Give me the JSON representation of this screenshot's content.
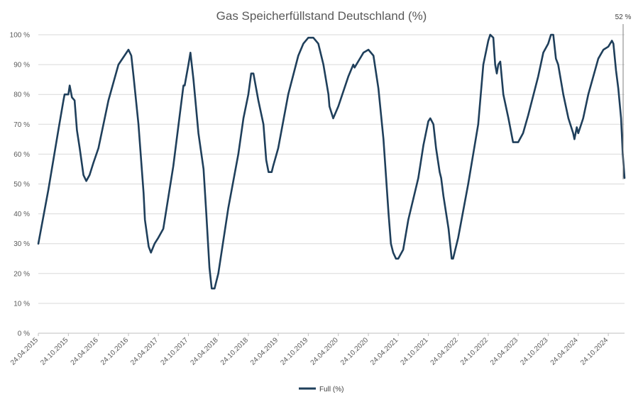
{
  "chart_data": {
    "type": "line",
    "title": "Gas Speicherfüllstand Deutschland (%)",
    "xlabel": "",
    "ylabel": "",
    "ylim": [
      0,
      100
    ],
    "y_ticks": [
      "0 %",
      "10 %",
      "20 %",
      "30 %",
      "40 %",
      "50 %",
      "60 %",
      "70 %",
      "80 %",
      "90 %",
      "100 %"
    ],
    "x_ticks": [
      "24.04.2015",
      "24.10.2015",
      "24.04.2016",
      "24.10.2016",
      "24.04.2017",
      "24.10.2017",
      "24.04.2018",
      "24.10.2018",
      "24.04.2019",
      "24.10.2019",
      "24.04.2020",
      "24.10.2020",
      "24.04.2021",
      "24.10.2021",
      "24.04.2022",
      "24.10.2022",
      "24.04.2023",
      "24.10.2023",
      "24.04.2024",
      "24.10.2024"
    ],
    "grid": true,
    "legend_position": "bottom",
    "annotation": "52 %",
    "series": [
      {
        "name": "Full (%)",
        "color": "#1f3f5b",
        "points": [
          [
            "24.04.2015",
            30
          ],
          [
            "24.06.2015",
            48
          ],
          [
            "24.08.2015",
            68
          ],
          [
            "24.09.2015",
            78
          ],
          [
            "01.10.2015",
            80
          ],
          [
            "24.10.2015",
            80
          ],
          [
            "01.11.2015",
            83
          ],
          [
            "15.11.2015",
            79
          ],
          [
            "01.12.2015",
            78
          ],
          [
            "15.12.2015",
            68
          ],
          [
            "01.01.2016",
            62
          ],
          [
            "24.01.2016",
            53
          ],
          [
            "10.02.2016",
            51
          ],
          [
            "01.03.2016",
            53
          ],
          [
            "24.03.2016",
            57
          ],
          [
            "24.04.2016",
            62
          ],
          [
            "24.06.2016",
            78
          ],
          [
            "24.08.2016",
            90
          ],
          [
            "24.10.2016",
            95
          ],
          [
            "10.11.2016",
            93
          ],
          [
            "24.11.2016",
            86
          ],
          [
            "24.12.2016",
            70
          ],
          [
            "24.01.2017",
            47
          ],
          [
            "01.02.2017",
            38
          ],
          [
            "24.02.2017",
            29
          ],
          [
            "10.03.2017",
            27
          ],
          [
            "01.04.2017",
            30
          ],
          [
            "24.04.2017",
            32
          ],
          [
            "24.05.2017",
            35
          ],
          [
            "24.07.2017",
            56
          ],
          [
            "24.09.2017",
            83
          ],
          [
            "01.10.2017",
            83
          ],
          [
            "24.10.2017",
            90
          ],
          [
            "05.11.2017",
            94
          ],
          [
            "24.11.2017",
            85
          ],
          [
            "24.12.2017",
            67
          ],
          [
            "24.01.2018",
            55
          ],
          [
            "10.02.2018",
            40
          ],
          [
            "01.03.2018",
            22
          ],
          [
            "15.03.2018",
            15
          ],
          [
            "01.04.2018",
            15
          ],
          [
            "24.04.2018",
            20
          ],
          [
            "24.06.2018",
            42
          ],
          [
            "24.08.2018",
            60
          ],
          [
            "24.09.2018",
            72
          ],
          [
            "24.10.2018",
            80
          ],
          [
            "10.11.2018",
            87
          ],
          [
            "24.11.2018",
            87
          ],
          [
            "24.12.2018",
            78
          ],
          [
            "24.01.2019",
            70
          ],
          [
            "10.02.2019",
            58
          ],
          [
            "24.02.2019",
            54
          ],
          [
            "15.03.2019",
            54
          ],
          [
            "24.03.2019",
            56
          ],
          [
            "24.04.2019",
            62
          ],
          [
            "24.06.2019",
            80
          ],
          [
            "24.08.2019",
            93
          ],
          [
            "24.09.2019",
            97
          ],
          [
            "24.10.2019",
            99
          ],
          [
            "24.11.2019",
            99
          ],
          [
            "24.12.2019",
            97
          ],
          [
            "24.01.2020",
            90
          ],
          [
            "24.02.2020",
            80
          ],
          [
            "01.03.2020",
            76
          ],
          [
            "24.03.2020",
            72
          ],
          [
            "24.04.2020",
            76
          ],
          [
            "24.06.2020",
            86
          ],
          [
            "24.07.2020",
            90
          ],
          [
            "01.08.2020",
            89
          ],
          [
            "24.09.2020",
            94
          ],
          [
            "24.10.2020",
            95
          ],
          [
            "24.11.2020",
            93
          ],
          [
            "24.12.2020",
            82
          ],
          [
            "24.01.2021",
            65
          ],
          [
            "24.02.2021",
            40
          ],
          [
            "10.03.2021",
            30
          ],
          [
            "24.03.2021",
            27
          ],
          [
            "10.04.2021",
            25
          ],
          [
            "24.04.2021",
            25
          ],
          [
            "24.05.2021",
            28
          ],
          [
            "24.06.2021",
            38
          ],
          [
            "24.08.2021",
            52
          ],
          [
            "24.09.2021",
            63
          ],
          [
            "24.10.2021",
            71
          ],
          [
            "05.11.2021",
            72
          ],
          [
            "24.11.2021",
            70
          ],
          [
            "10.12.2021",
            62
          ],
          [
            "01.01.2022",
            54
          ],
          [
            "10.01.2022",
            52
          ],
          [
            "24.01.2022",
            46
          ],
          [
            "24.02.2022",
            35
          ],
          [
            "15.03.2022",
            25
          ],
          [
            "24.03.2022",
            25
          ],
          [
            "24.04.2022",
            32
          ],
          [
            "24.06.2022",
            50
          ],
          [
            "24.08.2022",
            70
          ],
          [
            "24.09.2022",
            90
          ],
          [
            "24.10.2022",
            98
          ],
          [
            "05.11.2022",
            100
          ],
          [
            "24.11.2022",
            99
          ],
          [
            "05.12.2022",
            90
          ],
          [
            "15.12.2022",
            87
          ],
          [
            "24.12.2022",
            90
          ],
          [
            "05.01.2023",
            91
          ],
          [
            "24.01.2023",
            80
          ],
          [
            "24.02.2023",
            72
          ],
          [
            "24.03.2023",
            64
          ],
          [
            "24.04.2023",
            64
          ],
          [
            "24.05.2023",
            67
          ],
          [
            "24.06.2023",
            73
          ],
          [
            "24.08.2023",
            86
          ],
          [
            "24.09.2023",
            94
          ],
          [
            "24.10.2023",
            97
          ],
          [
            "10.11.2023",
            100
          ],
          [
            "24.11.2023",
            100
          ],
          [
            "10.12.2023",
            92
          ],
          [
            "24.12.2023",
            90
          ],
          [
            "24.01.2024",
            80
          ],
          [
            "24.02.2024",
            72
          ],
          [
            "24.03.2024",
            67
          ],
          [
            "01.04.2024",
            65
          ],
          [
            "15.04.2024",
            69
          ],
          [
            "24.04.2024",
            67
          ],
          [
            "24.05.2024",
            72
          ],
          [
            "24.06.2024",
            80
          ],
          [
            "24.08.2024",
            92
          ],
          [
            "24.09.2024",
            95
          ],
          [
            "24.10.2024",
            96
          ],
          [
            "15.11.2024",
            98
          ],
          [
            "24.11.2024",
            97
          ],
          [
            "10.12.2024",
            88
          ],
          [
            "24.12.2024",
            82
          ],
          [
            "10.01.2025",
            72
          ],
          [
            "20.01.2025",
            60
          ],
          [
            "31.01.2025",
            52
          ]
        ]
      }
    ]
  }
}
